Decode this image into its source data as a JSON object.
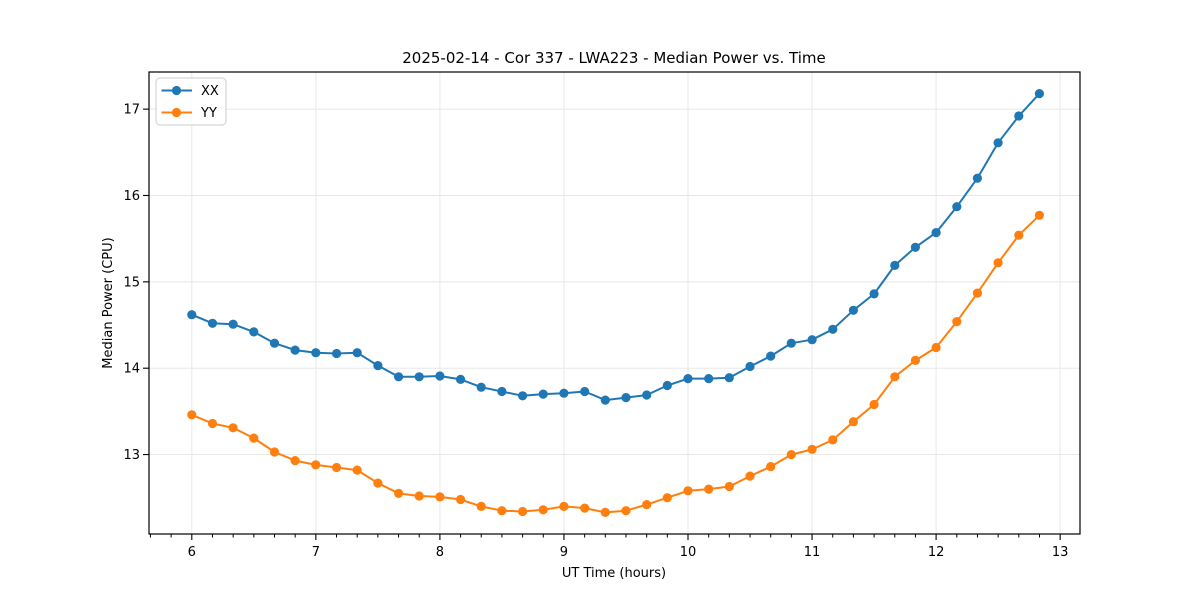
{
  "colors": {
    "series_xx": "#1f77b4",
    "series_yy": "#ff7f0e",
    "grid": "#e8e8e8",
    "axis": "#000000",
    "legend_border": "#cccccc",
    "background": "#ffffff"
  },
  "chart_data": {
    "type": "line",
    "title": "2025-02-14 - Cor 337 - LWA223 - Median Power vs. Time",
    "xlabel": "UT Time (hours)",
    "ylabel": "Median Power (CPU)",
    "xlim": [
      5.655,
      13.16
    ],
    "ylim": [
      12.08,
      17.43
    ],
    "x_ticks": [
      6,
      7,
      8,
      9,
      10,
      11,
      12,
      13
    ],
    "y_ticks": [
      13,
      14,
      15,
      16,
      17
    ],
    "x_minor_tick_interval": 0.16667,
    "grid": true,
    "legend_position": "upper-left",
    "marker": "circle",
    "x": [
      6.0,
      6.167,
      6.333,
      6.5,
      6.667,
      6.833,
      7.0,
      7.167,
      7.333,
      7.5,
      7.667,
      7.833,
      8.0,
      8.167,
      8.333,
      8.5,
      8.667,
      8.833,
      9.0,
      9.167,
      9.333,
      9.5,
      9.667,
      9.833,
      10.0,
      10.167,
      10.333,
      10.5,
      10.667,
      10.833,
      11.0,
      11.167,
      11.333,
      11.5,
      11.667,
      11.833,
      12.0,
      12.167,
      12.333,
      12.5,
      12.667,
      12.833
    ],
    "series": [
      {
        "name": "XX",
        "color": "#1f77b4",
        "values": [
          14.62,
          14.52,
          14.51,
          14.42,
          14.29,
          14.21,
          14.18,
          14.17,
          14.18,
          14.03,
          13.9,
          13.9,
          13.91,
          13.87,
          13.78,
          13.73,
          13.68,
          13.7,
          13.71,
          13.73,
          13.63,
          13.66,
          13.69,
          13.8,
          13.88,
          13.88,
          13.89,
          14.02,
          14.14,
          14.29,
          14.33,
          14.45,
          14.67,
          14.86,
          15.19,
          15.4,
          15.57,
          15.87,
          16.2,
          16.61,
          16.92,
          17.18
        ]
      },
      {
        "name": "YY",
        "color": "#ff7f0e",
        "values": [
          13.46,
          13.36,
          13.31,
          13.19,
          13.03,
          12.93,
          12.88,
          12.85,
          12.82,
          12.67,
          12.55,
          12.52,
          12.51,
          12.48,
          12.4,
          12.35,
          12.34,
          12.36,
          12.4,
          12.38,
          12.33,
          12.35,
          12.42,
          12.5,
          12.58,
          12.6,
          12.63,
          12.75,
          12.86,
          13.0,
          13.06,
          13.17,
          13.38,
          13.58,
          13.9,
          14.09,
          14.24,
          14.54,
          14.87,
          15.22,
          15.54,
          15.77
        ]
      }
    ]
  }
}
